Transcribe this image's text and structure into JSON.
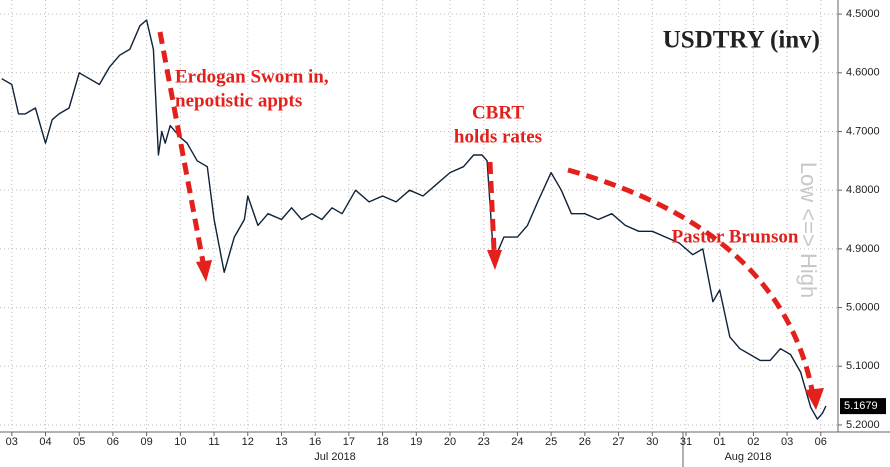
{
  "chart_data": {
    "type": "line",
    "title": "USDTRY (inv)",
    "y_label": "Low <=> High",
    "y_inverted": true,
    "grid": true,
    "x_month_labels": [
      "Jul 2018",
      "Aug 2018"
    ],
    "annotations": [
      [
        "Erdogan Sworn in,",
        "nepotistic appts"
      ],
      [
        "CBRT",
        "holds rates"
      ],
      [
        "Pastor Brunson"
      ]
    ],
    "x": [
      -0.3,
      0,
      0.2,
      0.4,
      0.7,
      1.0,
      1.2,
      1.4,
      1.7,
      2.0,
      2.3,
      2.6,
      2.9,
      3.2,
      3.5,
      3.8,
      4.0,
      4.2,
      4.35,
      4.45,
      4.55,
      4.7,
      5.0,
      5.2,
      5.5,
      5.8,
      6.0,
      6.3,
      6.6,
      6.9,
      7.0,
      7.3,
      7.6,
      8.0,
      8.3,
      8.6,
      8.9,
      9.2,
      9.5,
      9.8,
      10.2,
      10.6,
      11.0,
      11.4,
      11.8,
      12.2,
      12.6,
      13.0,
      13.4,
      13.7,
      13.95,
      14.1,
      14.3,
      14.6,
      15.0,
      15.3,
      15.6,
      16.0,
      16.3,
      16.6,
      17.0,
      17.4,
      17.8,
      18.2,
      18.6,
      19.0,
      19.4,
      19.8,
      20.2,
      20.5,
      20.8,
      21.0,
      21.3,
      21.6,
      21.9,
      22.2,
      22.5,
      22.8,
      23.1,
      23.4,
      23.7,
      23.9,
      24.05,
      24.15
    ],
    "series": [
      {
        "name": "USDTRY",
        "color": "#0f2238",
        "values": [
          4.61,
          4.62,
          4.67,
          4.67,
          4.66,
          4.72,
          4.68,
          4.67,
          4.66,
          4.6,
          4.61,
          4.62,
          4.59,
          4.57,
          4.56,
          4.52,
          4.51,
          4.56,
          4.74,
          4.7,
          4.72,
          4.69,
          4.71,
          4.72,
          4.75,
          4.76,
          4.85,
          4.94,
          4.88,
          4.85,
          4.81,
          4.86,
          4.84,
          4.85,
          4.83,
          4.85,
          4.84,
          4.85,
          4.83,
          4.84,
          4.8,
          4.82,
          4.81,
          4.82,
          4.8,
          4.81,
          4.79,
          4.77,
          4.76,
          4.74,
          4.74,
          4.75,
          4.92,
          4.88,
          4.88,
          4.86,
          4.82,
          4.77,
          4.8,
          4.84,
          4.84,
          4.85,
          4.84,
          4.86,
          4.87,
          4.87,
          4.88,
          4.89,
          4.91,
          4.9,
          4.99,
          4.97,
          5.05,
          5.07,
          5.08,
          5.09,
          5.09,
          5.07,
          5.08,
          5.11,
          5.17,
          5.19,
          5.18,
          5.1679
        ]
      }
    ],
    "xlim": [
      -0.35,
      24.51
    ],
    "ylim": [
      4.476,
      5.212
    ],
    "xticks": [
      {
        "value": 0,
        "label": "03"
      },
      {
        "value": 1,
        "label": "04"
      },
      {
        "value": 2,
        "label": "05"
      },
      {
        "value": 3,
        "label": "06"
      },
      {
        "value": 4,
        "label": "09"
      },
      {
        "value": 5,
        "label": "10"
      },
      {
        "value": 6,
        "label": "11"
      },
      {
        "value": 7,
        "label": "12"
      },
      {
        "value": 8,
        "label": "13"
      },
      {
        "value": 9,
        "label": "16"
      },
      {
        "value": 10,
        "label": "17"
      },
      {
        "value": 11,
        "label": "18"
      },
      {
        "value": 12,
        "label": "19"
      },
      {
        "value": 13,
        "label": "20"
      },
      {
        "value": 14,
        "label": "23"
      },
      {
        "value": 15,
        "label": "24"
      },
      {
        "value": 16,
        "label": "25"
      },
      {
        "value": 17,
        "label": "26"
      },
      {
        "value": 18,
        "label": "27"
      },
      {
        "value": 19,
        "label": "30"
      },
      {
        "value": 20,
        "label": "31"
      },
      {
        "value": 21,
        "label": "01"
      },
      {
        "value": 22,
        "label": "02"
      },
      {
        "value": 23,
        "label": "03"
      },
      {
        "value": 24,
        "label": "06"
      }
    ],
    "yticks": [
      {
        "value": 4.5,
        "label": "4.5000"
      },
      {
        "value": 4.6,
        "label": "4.6000"
      },
      {
        "value": 4.7,
        "label": "4.7000"
      },
      {
        "value": 4.8,
        "label": "4.8000"
      },
      {
        "value": 4.9,
        "label": "4.9000"
      },
      {
        "value": 5.0,
        "label": "5.0000"
      },
      {
        "value": 5.1,
        "label": "5.1000"
      },
      {
        "value": 5.2,
        "label": "5.2000"
      }
    ]
  }
}
